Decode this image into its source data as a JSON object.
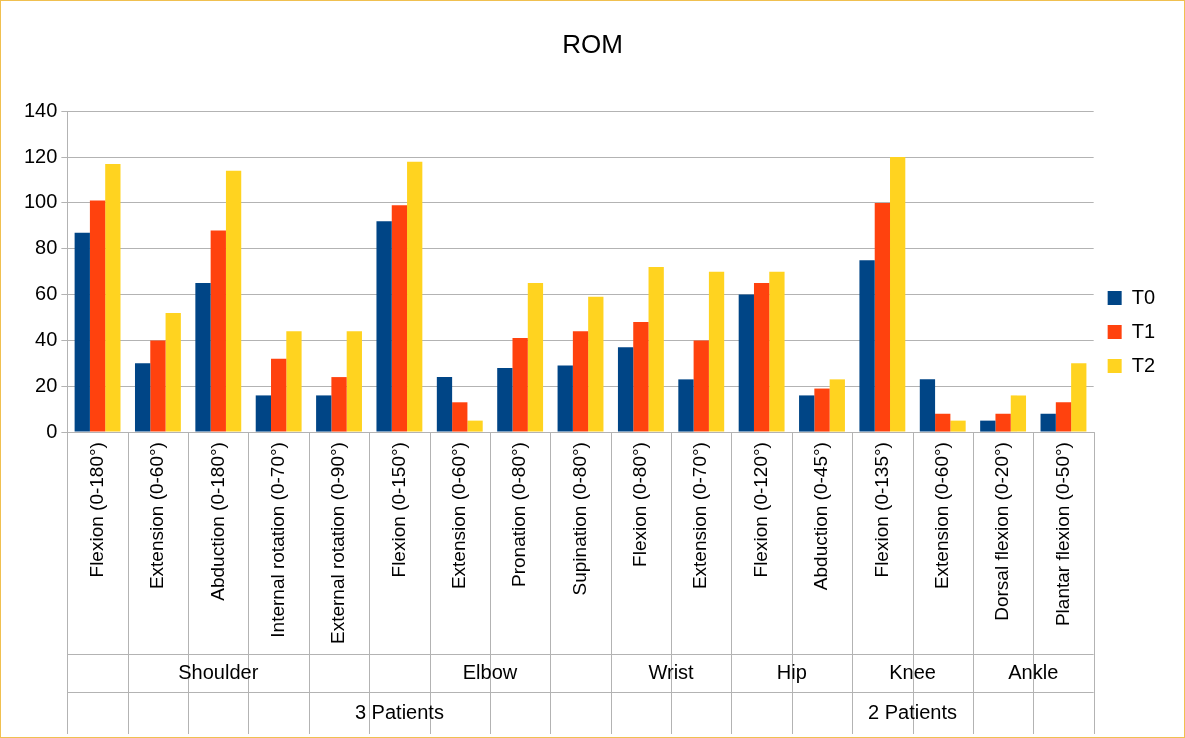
{
  "chart_data": {
    "type": "bar",
    "title": "ROM",
    "categories": [
      "Flexion (0-180°)",
      "Extension (0-60°)",
      "Abduction (0-180°)",
      "Internal rotation (0-70°)",
      "External rotation (0-90°)",
      "Flexion (0-150°)",
      "Extension (0-60°)",
      "Pronation (0-80°)",
      "Supination (0-80°)",
      "Flexion (0-80°)",
      "Extension (0-70°)",
      "Flexion (0-120°)",
      "Abduction (0-45°)",
      "Flexion (0-135°)",
      "Extension (0-60°)",
      "Dorsal flexion (0-20°)",
      "Plantar flexion (0-50°)"
    ],
    "series": [
      {
        "name": "T0",
        "color": "#004586",
        "values": [
          87,
          30,
          65,
          16,
          16,
          92,
          24,
          28,
          29,
          37,
          23,
          60,
          16,
          75,
          23,
          5,
          8
        ]
      },
      {
        "name": "T1",
        "color": "#ff420e",
        "values": [
          101,
          40,
          88,
          32,
          24,
          99,
          13,
          41,
          44,
          48,
          40,
          65,
          19,
          100,
          8,
          8,
          13
        ]
      },
      {
        "name": "T2",
        "color": "#ffd320",
        "values": [
          117,
          52,
          114,
          44,
          44,
          118,
          5,
          65,
          59,
          72,
          70,
          70,
          23,
          120,
          5,
          16,
          30
        ]
      }
    ],
    "ylim": [
      0,
      140
    ],
    "yticks": [
      0,
      20,
      40,
      60,
      80,
      100,
      120,
      140
    ],
    "grid": "y",
    "legend": "right",
    "annotations": [
      "Shoulder",
      "Elbow",
      "Wrist",
      "Hip",
      "Knee",
      "Ankle",
      "3 Patients",
      "2 Patients"
    ]
  }
}
